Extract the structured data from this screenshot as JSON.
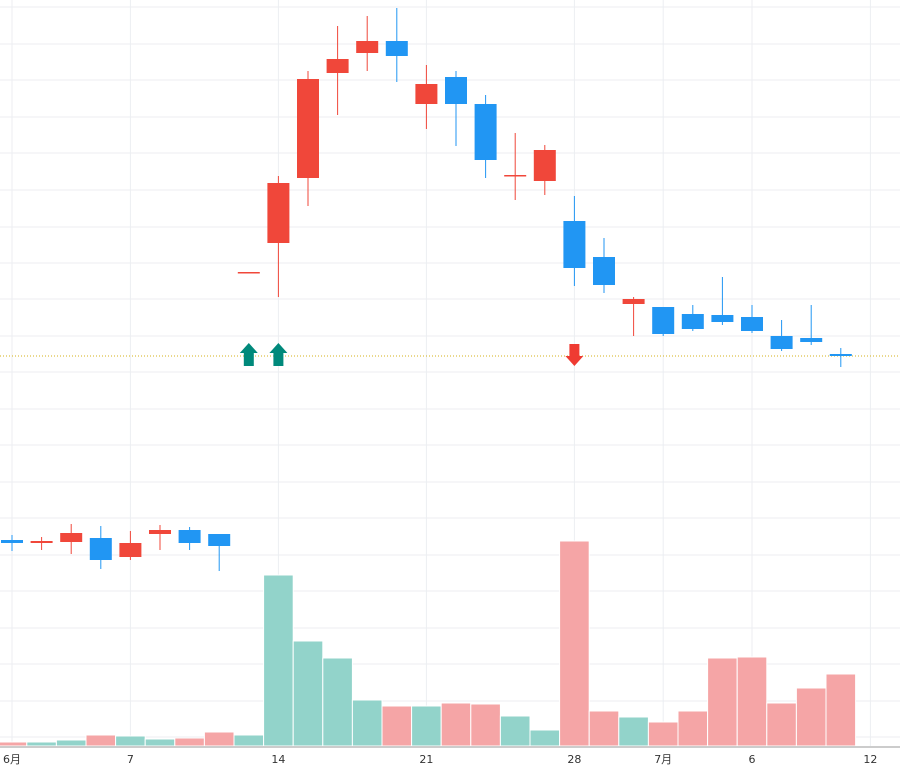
{
  "chart_data": {
    "type": "candlestick",
    "categories": [
      "6月",
      null,
      null,
      null,
      "7",
      null,
      null,
      null,
      null,
      "14",
      null,
      null,
      null,
      null,
      "21",
      null,
      null,
      null,
      null,
      "28",
      null,
      null,
      "7月",
      null,
      null,
      "6",
      null,
      null,
      null,
      "12"
    ],
    "open": [
      236,
      233,
      234,
      238,
      219,
      242,
      246,
      242,
      503,
      533,
      598,
      703,
      723,
      735,
      672,
      699,
      672,
      600,
      595,
      555,
      519,
      472,
      469,
      462,
      461,
      459,
      440,
      438,
      422,
      null
    ],
    "high": [
      241,
      239,
      252,
      250,
      245,
      251,
      249,
      242,
      504,
      600,
      705,
      750,
      760,
      768,
      711,
      705,
      681,
      643,
      631,
      580,
      538,
      479,
      469,
      471,
      499,
      471,
      456,
      471,
      428,
      null
    ],
    "low": [
      225,
      226,
      222,
      207,
      216,
      226,
      226,
      205,
      503,
      479,
      570,
      661,
      705,
      694,
      647,
      630,
      598,
      576,
      581,
      490,
      483,
      440,
      440,
      445,
      451,
      443,
      425,
      431,
      409,
      null
    ],
    "close": [
      233,
      235,
      243,
      216,
      233,
      246,
      233,
      230,
      504,
      593,
      697,
      717,
      735,
      720,
      692,
      672,
      616,
      601,
      626,
      508,
      491,
      477,
      442,
      447,
      454,
      445,
      427,
      434,
      420,
      null
    ],
    "up_color": "#f0473a",
    "down_color": "#2196f3",
    "volume": [
      4,
      4,
      6,
      11,
      10,
      7,
      8,
      14,
      11,
      171,
      105,
      88,
      46,
      40,
      40,
      43,
      42,
      30,
      16,
      205,
      35,
      29,
      24,
      35,
      88,
      89,
      43,
      58,
      72,
      null
    ],
    "volume_colors": [
      "#f5a5a6",
      "#92d3ca",
      "#92d3ca",
      "#f5a5a6",
      "#92d3ca",
      "#92d3ca",
      "#f5a5a6",
      "#f5a5a6",
      "#92d3ca",
      "#92d3ca",
      "#92d3ca",
      "#92d3ca",
      "#92d3ca",
      "#f5a5a6",
      "#92d3ca",
      "#f5a5a6",
      "#f5a5a6",
      "#92d3ca",
      "#92d3ca",
      "#f5a5a6",
      "#f5a5a6",
      "#92d3ca",
      "#f5a5a6",
      "#f5a5a6",
      "#f5a5a6",
      "#f5a5a6",
      "#f5a5a6",
      "#f5a5a6",
      "#f5a5a6",
      null
    ],
    "ylim": [
      0,
      776
    ],
    "y2lim": [
      0,
      746
    ],
    "grid_lines": [
      769,
      732,
      696,
      659,
      623,
      586,
      549,
      513,
      477,
      440,
      404,
      367,
      331,
      294,
      258,
      221,
      185,
      148,
      112,
      75,
      39
    ],
    "price_line": 420,
    "price_line_color": "#d4b21a",
    "signals": [
      {
        "at": 8,
        "side": "buy"
      },
      {
        "at": 9,
        "side": "buy"
      },
      {
        "at": 19,
        "side": "sell"
      }
    ],
    "buy_color": "#00897b",
    "sell_color": "#ef3b32"
  }
}
